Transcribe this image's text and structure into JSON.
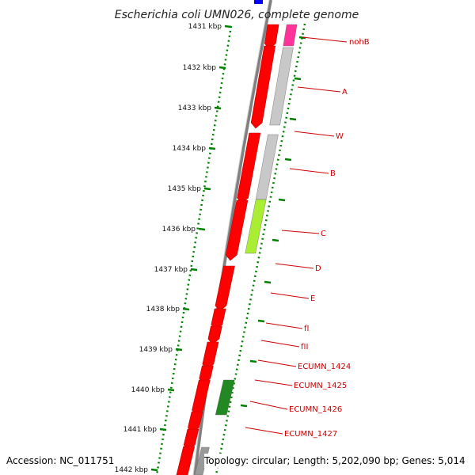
{
  "title": "Escherichia coli UMN026, complete genome",
  "scale_marks": [
    "1431 kbp",
    "1432 kbp",
    "1433 kbp",
    "1434 kbp",
    "1435 kbp",
    "1436 kbp",
    "1437 kbp",
    "1438 kbp",
    "1439 kbp",
    "1440 kbp",
    "1441 kbp",
    "1442 kbp"
  ],
  "gene_labels": [
    "nohB",
    "A",
    "W",
    "B",
    "C",
    "D",
    "E",
    "fI",
    "fII",
    "ECUMN_1424",
    "ECUMN_1425",
    "ECUMN_1426",
    "ECUMN_1427"
  ],
  "footer": {
    "accession": "Accession: NC_011751",
    "topology": "Topology: circular; Length: 5,202,090 bp; Genes: 5,014"
  },
  "colors": {
    "cds": "#ff0000",
    "backbone": "#808080",
    "scale": "#008000",
    "label": "#cc0000",
    "magenta": "#ff3399",
    "gray_feature": "#c8c8c8",
    "lime_feature": "#aaee33",
    "green_feature": "#228822",
    "blue_feature": "#0000ff"
  }
}
